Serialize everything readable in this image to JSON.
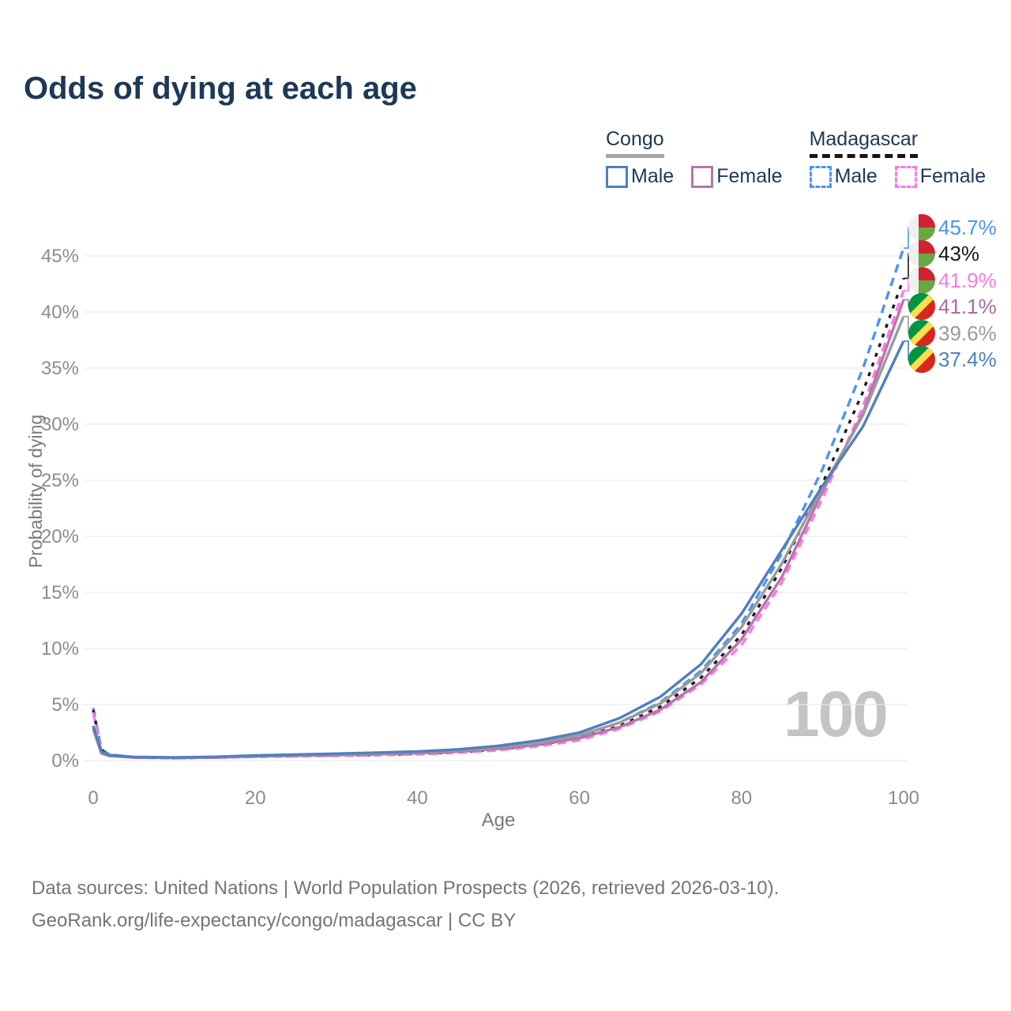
{
  "title": "Odds of dying at each age",
  "watermark": "100",
  "legend": {
    "groups": [
      {
        "country": "Congo",
        "line_style": "solid",
        "underline_color": "#a6a6a6",
        "items": [
          {
            "label": "Male",
            "color": "#4f80bd"
          },
          {
            "label": "Female",
            "color": "#b873ae"
          }
        ]
      },
      {
        "country": "Madagascar",
        "line_style": "dashed",
        "underline_color": "#151515",
        "items": [
          {
            "label": "Male",
            "color": "#4b94f4"
          },
          {
            "label": "Female",
            "color": "#fb7ae4"
          }
        ]
      }
    ]
  },
  "footer": {
    "line1": "Data sources: United Nations | World Population Prospects (2026, retrieved 2026-03-10).",
    "line2": "GeoRank.org/life-expectancy/congo/madagascar | CC BY"
  },
  "chart_data": {
    "type": "line",
    "title": "Odds of dying at each age",
    "xlabel": "Age",
    "ylabel": "Probability of dying",
    "xlim": [
      0,
      100
    ],
    "ylim": [
      0,
      47.5
    ],
    "grid": "horizontal",
    "legend_position": "top-right",
    "x_ticks": [
      "0",
      "20",
      "40",
      "60",
      "80",
      "100"
    ],
    "y_ticks": [
      "0%",
      "5%",
      "10%",
      "15%",
      "20%",
      "25%",
      "30%",
      "35%",
      "40%",
      "45%"
    ],
    "x": [
      0,
      1,
      2,
      5,
      10,
      15,
      20,
      25,
      30,
      35,
      40,
      45,
      50,
      55,
      60,
      65,
      70,
      75,
      80,
      85,
      90,
      95,
      100
    ],
    "series": [
      {
        "name": "Madagascar Male",
        "country": "Madagascar",
        "flag": "madagascar",
        "color": "#4b94f4",
        "dash": "11 7",
        "end_label": "45.7%",
        "label_color": "#4b94f4",
        "values": [
          4.7,
          1.0,
          0.55,
          0.3,
          0.25,
          0.3,
          0.4,
          0.45,
          0.5,
          0.56,
          0.66,
          0.82,
          1.1,
          1.55,
          2.2,
          3.4,
          5.2,
          8.0,
          12.2,
          18.5,
          26.0,
          35.0,
          45.7
        ]
      },
      {
        "name": "Madagascar",
        "country": "Madagascar",
        "flag": "madagascar",
        "color": "#1a1a1a",
        "dash": "5 8",
        "end_label": "43%",
        "label_color": "#1a1a1a",
        "values": [
          4.5,
          0.92,
          0.5,
          0.28,
          0.23,
          0.28,
          0.37,
          0.42,
          0.47,
          0.52,
          0.61,
          0.76,
          1.0,
          1.4,
          2.0,
          3.1,
          4.8,
          7.4,
          11.2,
          17.2,
          24.7,
          32.9,
          43.0
        ]
      },
      {
        "name": "Madagascar Female",
        "country": "Madagascar",
        "flag": "madagascar",
        "color": "#fb7ae4",
        "dash": "11 7",
        "end_label": "41.9%",
        "label_color": "#fb7ae4",
        "values": [
          4.3,
          0.85,
          0.46,
          0.26,
          0.21,
          0.26,
          0.34,
          0.38,
          0.43,
          0.48,
          0.56,
          0.7,
          0.92,
          1.28,
          1.82,
          2.85,
          4.4,
          6.8,
          10.3,
          15.9,
          23.4,
          31.6,
          41.9
        ]
      },
      {
        "name": "Congo Female",
        "country": "Congo",
        "flag": "congo",
        "color": "#b873ae",
        "dash": null,
        "end_label": "41.1%",
        "label_color": "#a86ba5",
        "values": [
          2.8,
          0.65,
          0.41,
          0.28,
          0.24,
          0.28,
          0.38,
          0.44,
          0.5,
          0.57,
          0.66,
          0.8,
          1.05,
          1.42,
          2.0,
          3.0,
          4.55,
          7.0,
          10.8,
          16.4,
          24.0,
          31.0,
          41.1
        ]
      },
      {
        "name": "Congo",
        "country": "Congo",
        "flag": "congo",
        "color": "#9b9b9b",
        "dash": null,
        "end_label": "39.6%",
        "label_color": "#9b9b9b",
        "values": [
          2.95,
          0.72,
          0.45,
          0.3,
          0.26,
          0.31,
          0.42,
          0.49,
          0.56,
          0.64,
          0.74,
          0.9,
          1.18,
          1.6,
          2.25,
          3.4,
          5.1,
          7.8,
          11.9,
          17.6,
          24.3,
          30.8,
          39.6
        ]
      },
      {
        "name": "Congo Male",
        "country": "Congo",
        "flag": "congo",
        "color": "#4f80bd",
        "dash": null,
        "end_label": "37.4%",
        "label_color": "#4f80bd",
        "values": [
          3.1,
          0.8,
          0.5,
          0.33,
          0.28,
          0.34,
          0.46,
          0.54,
          0.62,
          0.71,
          0.82,
          1.0,
          1.32,
          1.8,
          2.5,
          3.8,
          5.7,
          8.6,
          13.1,
          18.8,
          24.5,
          29.8,
          37.4
        ]
      }
    ]
  }
}
